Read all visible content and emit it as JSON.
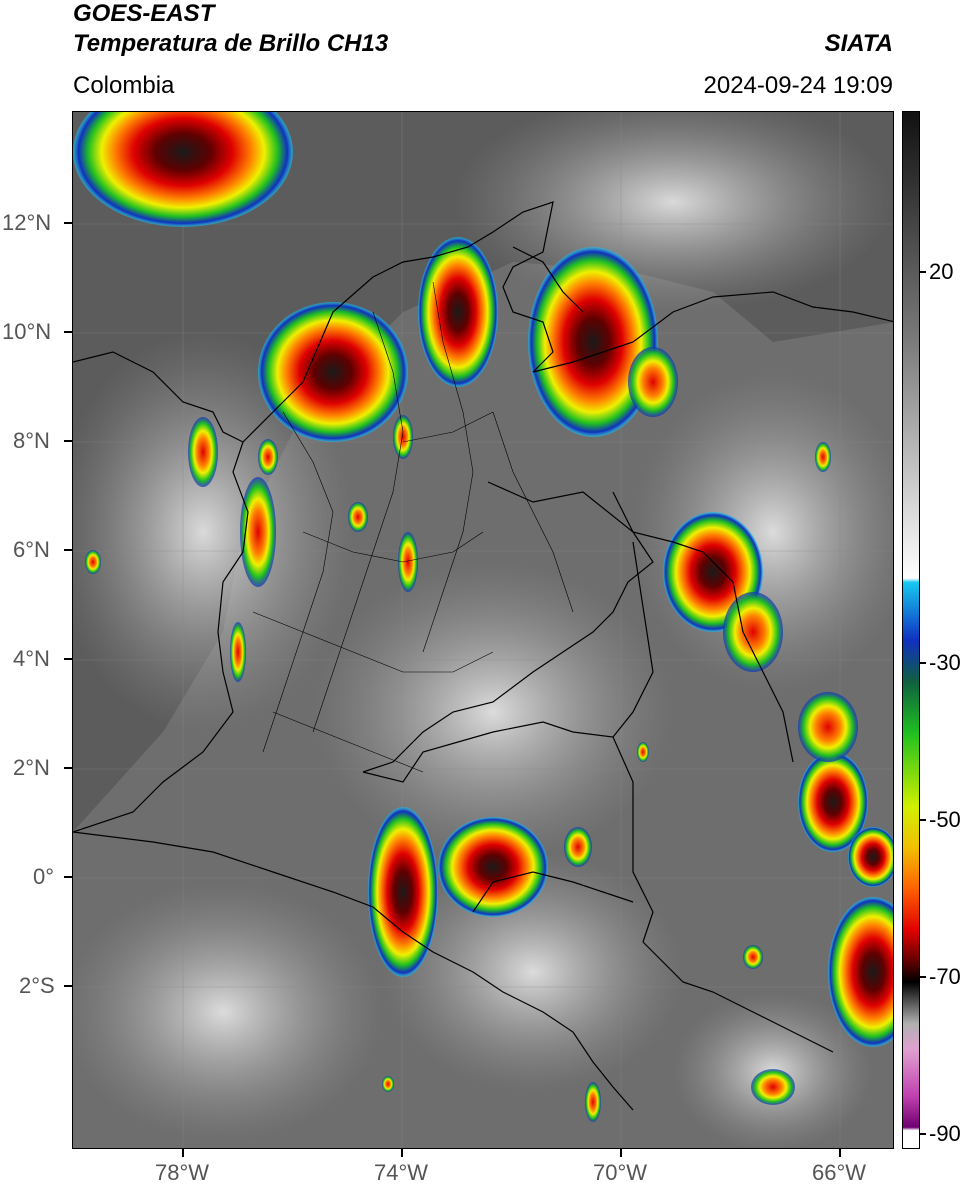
{
  "header": {
    "title_line1": "GOES-EAST",
    "title_line2": "Temperatura de Brillo CH13",
    "region": "Colombia",
    "organization": "SIATA",
    "timestamp": "2024-09-24 19:09"
  },
  "axes": {
    "lat_labels": [
      "12°N",
      "10°N",
      "8°N",
      "6°N",
      "4°N",
      "2°N",
      "0°",
      "2°S"
    ],
    "lon_labels": [
      "78°W",
      "74°W",
      "70°W",
      "66°W"
    ]
  },
  "colorbar": {
    "tick_labels": [
      "20",
      "-30",
      "-50",
      "-70",
      "-90"
    ],
    "colors": {
      "warm_gray_top": "#111111",
      "gray_mid": "#8a8a8a",
      "white": "#ffffff",
      "cyan": "#18c8f0",
      "blue": "#1020a0",
      "green": "#20c020",
      "yellow": "#f0f000",
      "orange": "#ff8000",
      "red": "#e00000",
      "dark_red": "#500000",
      "black": "#000000",
      "pink": "#e060c0",
      "purple": "#800080"
    }
  },
  "colors": {
    "ocean_gray": "#5a5a5a",
    "land_gray": "#707070",
    "cloud_light": "#d8d8d8",
    "border": "#000000"
  }
}
